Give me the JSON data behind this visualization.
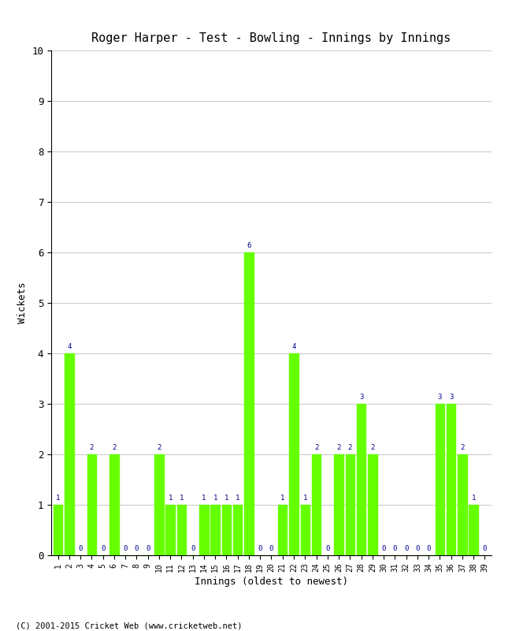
{
  "title": "Roger Harper - Test - Bowling - Innings by Innings",
  "xlabel": "Innings (oldest to newest)",
  "ylabel": "Wickets",
  "ylim": [
    0,
    10
  ],
  "yticks": [
    0,
    1,
    2,
    3,
    4,
    5,
    6,
    7,
    8,
    9,
    10
  ],
  "bar_color": "#66ff00",
  "bar_edge_color": "#66ff00",
  "label_color": "#00008B",
  "background_color": "#ffffff",
  "grid_color": "#cccccc",
  "footer": "(C) 2001-2015 Cricket Web (www.cricketweb.net)",
  "innings": [
    1,
    2,
    3,
    4,
    5,
    6,
    7,
    8,
    9,
    10,
    11,
    12,
    13,
    14,
    15,
    16,
    17,
    18,
    19,
    20,
    21,
    22,
    23,
    24,
    25,
    26,
    27,
    28,
    29,
    30,
    31,
    32,
    33,
    34,
    35,
    36,
    37,
    38,
    39
  ],
  "wickets": [
    1,
    4,
    0,
    2,
    0,
    2,
    0,
    0,
    0,
    2,
    1,
    1,
    0,
    1,
    1,
    1,
    1,
    6,
    0,
    0,
    1,
    4,
    1,
    2,
    0,
    2,
    2,
    3,
    2,
    0,
    0,
    0,
    0,
    0,
    3,
    3,
    2,
    1,
    0
  ]
}
